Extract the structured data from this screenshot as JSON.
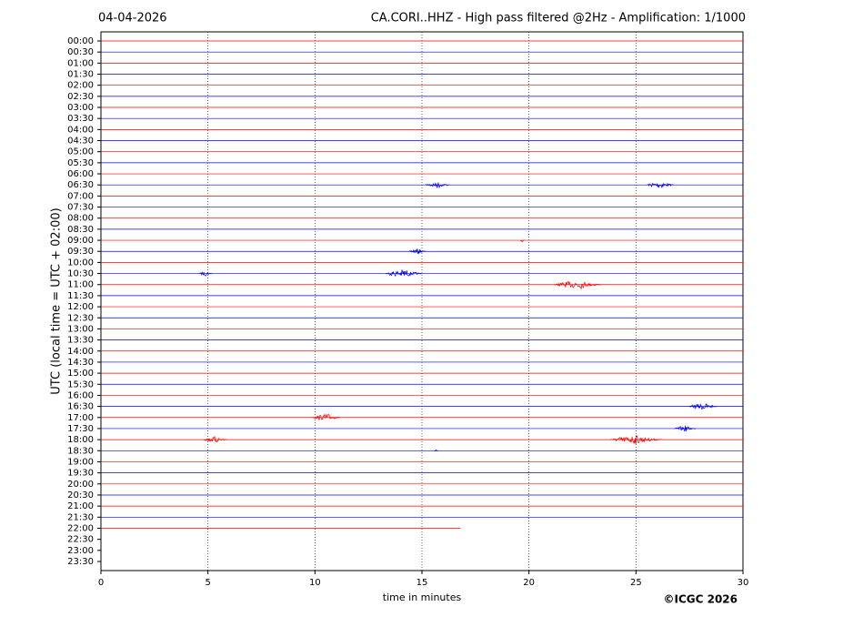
{
  "chart_data": {
    "type": "helicorder",
    "date": "04-04-2026",
    "title": "CA.CORI..HHZ - High pass filtered @2Hz - Amplification: 1/1000",
    "ylabel": "UTC (local time = UTC + 02:00)",
    "xlabel": "time in minutes",
    "credit": "©ICGC 2026",
    "rows": [
      "00:00",
      "00:30",
      "01:00",
      "01:30",
      "02:00",
      "02:30",
      "03:00",
      "03:30",
      "04:00",
      "04:30",
      "05:00",
      "05:30",
      "06:00",
      "06:30",
      "07:00",
      "07:30",
      "08:00",
      "08:30",
      "09:00",
      "09:30",
      "10:00",
      "10:30",
      "11:00",
      "11:30",
      "12:00",
      "12:30",
      "13:00",
      "13:30",
      "14:00",
      "14:30",
      "15:00",
      "15:30",
      "16:00",
      "16:30",
      "17:00",
      "17:30",
      "18:00",
      "18:30",
      "19:00",
      "19:30",
      "20:00",
      "20:30",
      "21:00",
      "21:30",
      "22:00",
      "22:30",
      "23:00",
      "23:30"
    ],
    "colors": [
      "#ff0000",
      "#0000ff"
    ],
    "data_end": {
      "row": "22:00",
      "minute": 16.8
    },
    "events": [
      {
        "row": "06:30",
        "x": [
          15.2,
          16.3
        ]
      },
      {
        "row": "06:30",
        "x": [
          25.5,
          26.8
        ]
      },
      {
        "row": "09:00",
        "x": [
          19.6,
          19.8
        ]
      },
      {
        "row": "09:30",
        "x": [
          14.4,
          15.2
        ]
      },
      {
        "row": "10:30",
        "x": [
          4.6,
          5.2
        ]
      },
      {
        "row": "10:30",
        "x": [
          13.3,
          15.0
        ]
      },
      {
        "row": "11:00",
        "x": [
          21.2,
          23.4
        ]
      },
      {
        "row": "16:30",
        "x": [
          27.5,
          28.8
        ]
      },
      {
        "row": "17:00",
        "x": [
          9.9,
          11.2
        ]
      },
      {
        "row": "17:30",
        "x": [
          26.8,
          27.8
        ]
      },
      {
        "row": "18:00",
        "x": [
          4.8,
          5.9
        ]
      },
      {
        "row": "18:00",
        "x": [
          23.8,
          26.2
        ]
      },
      {
        "row": "18:30",
        "x": [
          15.6,
          15.8
        ]
      }
    ],
    "xlim": [
      0,
      30
    ],
    "xticks": [
      0,
      5,
      10,
      15,
      20,
      25,
      30
    ],
    "grid": true
  }
}
